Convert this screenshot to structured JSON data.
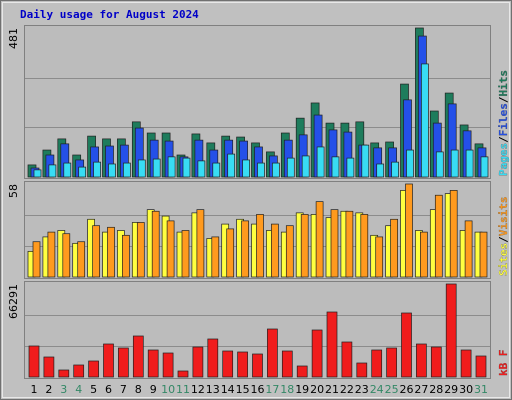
{
  "chart_data": [
    {
      "type": "bar",
      "title": "Daily usage for August 2024",
      "ylim": [
        0,
        481
      ],
      "yticks": [
        481
      ],
      "legend_separator": "/",
      "series": [
        {
          "name": "Pages",
          "color": "#38dcf4",
          "values": [
            23,
            39,
            45,
            32,
            48,
            42,
            45,
            55,
            58,
            65,
            61,
            52,
            45,
            74,
            55,
            45,
            45,
            61,
            68,
            97,
            65,
            61,
            103,
            42,
            48,
            87,
            365,
            81,
            87,
            87,
            65
          ]
        },
        {
          "name": "Files",
          "color": "#2450e8",
          "values": [
            29,
            71,
            107,
            55,
            97,
            100,
            103,
            158,
            119,
            116,
            65,
            119,
            87,
            119,
            116,
            97,
            68,
            119,
            136,
            200,
            152,
            145,
            103,
            94,
            94,
            249,
            455,
            174,
            236,
            149,
            94
          ]
        },
        {
          "name": "Hits",
          "color": "#1e7c5c",
          "values": [
            39,
            87,
            123,
            71,
            132,
            123,
            123,
            178,
            142,
            142,
            71,
            139,
            110,
            132,
            129,
            110,
            81,
            142,
            190,
            239,
            174,
            174,
            178,
            110,
            113,
            300,
            481,
            213,
            271,
            168,
            107
          ]
        }
      ]
    },
    {
      "type": "bar",
      "ylim": [
        0,
        58
      ],
      "yticks": [
        58
      ],
      "legend_separator": "/",
      "series": [
        {
          "name": "Sites",
          "color": "#ffff40",
          "values": [
            16,
            25,
            29,
            21,
            36,
            28,
            29,
            34,
            42,
            38,
            28,
            40,
            24,
            33,
            36,
            33,
            29,
            28,
            40,
            39,
            37,
            41,
            40,
            26,
            32,
            54,
            29,
            42,
            52,
            29,
            28
          ]
        },
        {
          "name": "Visits",
          "color": "#ff9a1e",
          "values": [
            22,
            28,
            27,
            22,
            32,
            31,
            26,
            34,
            41,
            35,
            29,
            42,
            25,
            30,
            35,
            39,
            33,
            32,
            39,
            47,
            42,
            41,
            39,
            25,
            36,
            58,
            28,
            51,
            54,
            35,
            28
          ]
        }
      ]
    },
    {
      "type": "bar",
      "ylim": [
        0,
        66291
      ],
      "yticks": [
        66291
      ],
      "series": [
        {
          "name": "kB F",
          "color": "#f01c1c",
          "values": [
            22097,
            14256,
            4990,
            8554,
            11405,
            23523,
            20671,
            29225,
            19246,
            17107,
            4277,
            21384,
            27087,
            18533,
            17820,
            16395,
            34214,
            18533,
            7841,
            33501,
            46332,
            24948,
            9979,
            19246,
            20671,
            45620,
            23523,
            21384,
            66291,
            19246,
            14969
          ]
        }
      ],
      "categories": [
        "1",
        "2",
        "3",
        "4",
        "5",
        "6",
        "7",
        "8",
        "9",
        "10",
        "11",
        "12",
        "13",
        "14",
        "15",
        "16",
        "17",
        "18",
        "19",
        "20",
        "21",
        "22",
        "23",
        "24",
        "25",
        "26",
        "27",
        "28",
        "29",
        "30",
        "31"
      ],
      "category_colors": [
        "#000000",
        "#000000",
        "#338866",
        "#338866",
        "#000000",
        "#000000",
        "#000000",
        "#000000",
        "#000000",
        "#338866",
        "#338866",
        "#000000",
        "#000000",
        "#000000",
        "#000000",
        "#000000",
        "#338866",
        "#338866",
        "#000000",
        "#000000",
        "#000000",
        "#000000",
        "#000000",
        "#338866",
        "#338866",
        "#000000",
        "#000000",
        "#000000",
        "#000000",
        "#000000",
        "#338866"
      ]
    }
  ]
}
